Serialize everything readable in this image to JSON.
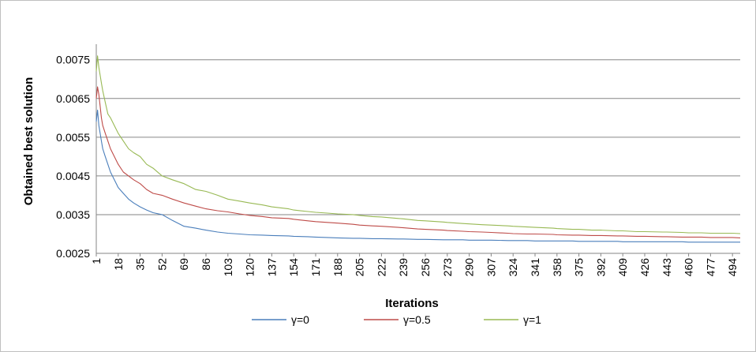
{
  "chart_data": {
    "type": "line",
    "title": "",
    "xlabel": "Iterations",
    "ylabel": "Obtained best solution",
    "xlim": [
      1,
      500
    ],
    "ylim": [
      0.0025,
      0.0078
    ],
    "x_ticks": [
      1,
      18,
      35,
      52,
      69,
      86,
      103,
      120,
      137,
      154,
      171,
      188,
      205,
      222,
      239,
      256,
      273,
      290,
      307,
      324,
      341,
      358,
      375,
      392,
      409,
      426,
      443,
      460,
      477,
      494
    ],
    "y_ticks": [
      0.0025,
      0.0035,
      0.0045,
      0.0055,
      0.0065,
      0.0075
    ],
    "y_tick_labels": [
      "0.0025",
      "0.0035",
      "0.0045",
      "0.0055",
      "0.0065",
      "0.0075"
    ],
    "grid": "horizontal",
    "legend_position": "bottom",
    "series": [
      {
        "name": "γ=0",
        "color": "#4a7ebb",
        "x": [
          1,
          2,
          3,
          4,
          5,
          6,
          8,
          10,
          12,
          15,
          18,
          22,
          26,
          30,
          35,
          40,
          45,
          52,
          60,
          69,
          78,
          86,
          95,
          103,
          112,
          120,
          130,
          137,
          150,
          154,
          165,
          171,
          180,
          188,
          200,
          205,
          215,
          222,
          235,
          239,
          250,
          256,
          270,
          273,
          285,
          290,
          300,
          307,
          320,
          324,
          335,
          341,
          355,
          358,
          370,
          375,
          385,
          392,
          405,
          409,
          420,
          426,
          440,
          443,
          455,
          460,
          470,
          477,
          485,
          494,
          500
        ],
        "y": [
          0.0059,
          0.0062,
          0.0058,
          0.0056,
          0.0054,
          0.0052,
          0.005,
          0.0048,
          0.0046,
          0.0044,
          0.0042,
          0.00405,
          0.0039,
          0.0038,
          0.0037,
          0.00362,
          0.00355,
          0.0035,
          0.00335,
          0.0032,
          0.00315,
          0.0031,
          0.00305,
          0.00302,
          0.003,
          0.00298,
          0.00297,
          0.00296,
          0.00295,
          0.00294,
          0.00293,
          0.00292,
          0.00291,
          0.0029,
          0.00289,
          0.00289,
          0.00288,
          0.00288,
          0.00287,
          0.00287,
          0.00286,
          0.00286,
          0.00285,
          0.00285,
          0.00285,
          0.00284,
          0.00284,
          0.00284,
          0.00283,
          0.00283,
          0.00283,
          0.00282,
          0.00282,
          0.00282,
          0.00282,
          0.00281,
          0.00281,
          0.00281,
          0.00281,
          0.0028,
          0.0028,
          0.0028,
          0.0028,
          0.0028,
          0.0028,
          0.00279,
          0.00279,
          0.00279,
          0.00279,
          0.00279,
          0.00279
        ]
      },
      {
        "name": "γ=0.5",
        "color": "#be4b48",
        "x": [
          1,
          2,
          3,
          4,
          5,
          6,
          8,
          10,
          12,
          15,
          18,
          22,
          26,
          30,
          35,
          40,
          45,
          52,
          60,
          69,
          78,
          86,
          95,
          103,
          112,
          120,
          130,
          137,
          150,
          154,
          165,
          171,
          180,
          188,
          200,
          205,
          215,
          222,
          235,
          239,
          250,
          256,
          270,
          273,
          285,
          290,
          300,
          307,
          320,
          324,
          335,
          341,
          355,
          358,
          370,
          375,
          385,
          392,
          405,
          409,
          420,
          426,
          440,
          443,
          455,
          460,
          470,
          477,
          485,
          494,
          500
        ],
        "y": [
          0.0065,
          0.0068,
          0.0066,
          0.0063,
          0.006,
          0.0058,
          0.0056,
          0.0054,
          0.0052,
          0.005,
          0.0048,
          0.0046,
          0.0045,
          0.0044,
          0.0043,
          0.00415,
          0.00405,
          0.004,
          0.0039,
          0.0038,
          0.00372,
          0.00365,
          0.0036,
          0.00357,
          0.00352,
          0.00348,
          0.00345,
          0.00342,
          0.0034,
          0.00338,
          0.00334,
          0.00332,
          0.0033,
          0.00328,
          0.00325,
          0.00323,
          0.00321,
          0.0032,
          0.00317,
          0.00316,
          0.00313,
          0.00312,
          0.0031,
          0.00309,
          0.00307,
          0.00306,
          0.00305,
          0.00304,
          0.00302,
          0.00301,
          0.003,
          0.003,
          0.00299,
          0.00298,
          0.00297,
          0.00297,
          0.00296,
          0.00296,
          0.00295,
          0.00295,
          0.00294,
          0.00294,
          0.00293,
          0.00293,
          0.00292,
          0.00292,
          0.00292,
          0.00291,
          0.00291,
          0.00291,
          0.0029
        ]
      },
      {
        "name": "γ=1",
        "color": "#98b954",
        "x": [
          1,
          2,
          3,
          4,
          5,
          6,
          8,
          10,
          12,
          15,
          18,
          22,
          26,
          30,
          35,
          40,
          45,
          52,
          60,
          69,
          78,
          86,
          95,
          103,
          112,
          120,
          130,
          137,
          150,
          154,
          165,
          171,
          180,
          188,
          200,
          205,
          215,
          222,
          235,
          239,
          250,
          256,
          270,
          273,
          285,
          290,
          300,
          307,
          320,
          324,
          335,
          341,
          355,
          358,
          370,
          375,
          385,
          392,
          405,
          409,
          420,
          426,
          440,
          443,
          455,
          460,
          470,
          477,
          485,
          494,
          500
        ],
        "y": [
          0.0072,
          0.0076,
          0.0073,
          0.0071,
          0.0069,
          0.0067,
          0.0064,
          0.0061,
          0.006,
          0.0058,
          0.0056,
          0.0054,
          0.0052,
          0.0051,
          0.005,
          0.0048,
          0.0047,
          0.0045,
          0.0044,
          0.0043,
          0.00415,
          0.0041,
          0.004,
          0.0039,
          0.00385,
          0.0038,
          0.00375,
          0.0037,
          0.00365,
          0.00362,
          0.00358,
          0.00356,
          0.00354,
          0.00352,
          0.0035,
          0.00348,
          0.00345,
          0.00344,
          0.0034,
          0.00339,
          0.00335,
          0.00334,
          0.00331,
          0.0033,
          0.00327,
          0.00326,
          0.00324,
          0.00323,
          0.00321,
          0.0032,
          0.00318,
          0.00317,
          0.00315,
          0.00314,
          0.00312,
          0.00312,
          0.0031,
          0.0031,
          0.00308,
          0.00308,
          0.00306,
          0.00306,
          0.00305,
          0.00305,
          0.00304,
          0.00303,
          0.00303,
          0.00302,
          0.00302,
          0.00302,
          0.00301
        ]
      }
    ]
  }
}
